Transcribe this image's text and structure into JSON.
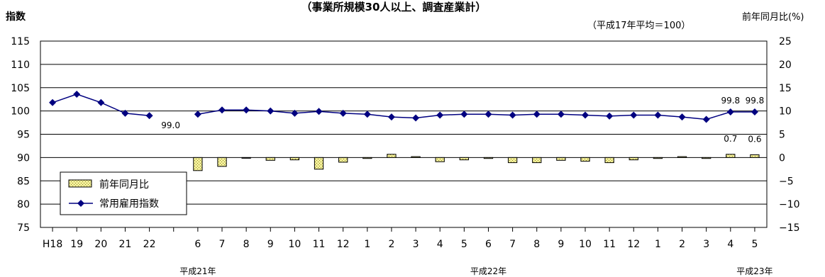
{
  "chart_data": {
    "type": "bar+line",
    "title": "（事業所規模30人以上、調査産業計）",
    "note": "（平成17年平均＝100）",
    "ylabel_left": "指数",
    "ylabel_right": "前年同月比(%)",
    "y_left": {
      "min": 75,
      "max": 115,
      "step": 5
    },
    "y_right": {
      "min": -15,
      "max": 25,
      "step": 5
    },
    "categories": [
      "H18",
      "19",
      "20",
      "21",
      "22",
      "",
      "6",
      "7",
      "8",
      "9",
      "10",
      "11",
      "12",
      "1",
      "2",
      "3",
      "4",
      "5",
      "6",
      "7",
      "8",
      "9",
      "10",
      "11",
      "12",
      "1",
      "2",
      "3",
      "4",
      "5"
    ],
    "year_groups": [
      {
        "label": "平成21年",
        "anchor": 6
      },
      {
        "label": "平成22年",
        "anchor": 18
      },
      {
        "label": "平成23年",
        "anchor": 29
      }
    ],
    "series": [
      {
        "name": "前年同月比",
        "kind": "bar",
        "axis": "right",
        "color": "#f3ef9a",
        "values": [
          null,
          null,
          null,
          null,
          null,
          null,
          -2.8,
          -1.9,
          -0.1,
          -0.6,
          -0.5,
          -2.5,
          -1.0,
          -0.2,
          0.7,
          0.2,
          -0.9,
          -0.5,
          -0.2,
          -1.1,
          -1.1,
          -0.6,
          -0.8,
          -1.1,
          -0.5,
          -0.2,
          0.2,
          -0.2,
          0.7,
          0.6
        ]
      },
      {
        "name": "常用雇用指数",
        "kind": "line",
        "axis": "left",
        "color": "#000080",
        "values": [
          101.8,
          103.6,
          101.8,
          99.5,
          99.0,
          null,
          99.3,
          100.2,
          100.2,
          100.0,
          99.5,
          99.9,
          99.5,
          99.3,
          98.7,
          98.5,
          99.1,
          99.3,
          99.3,
          99.1,
          99.3,
          99.3,
          99.1,
          98.9,
          99.1,
          99.1,
          98.7,
          98.2,
          99.8,
          99.8
        ]
      }
    ],
    "data_labels": [
      {
        "series": 1,
        "index": 4,
        "text": "99.0"
      },
      {
        "series": 1,
        "index": 28,
        "text": "99.8"
      },
      {
        "series": 1,
        "index": 29,
        "text": "99.8"
      },
      {
        "series": 0,
        "index": 28,
        "text": "0.7"
      },
      {
        "series": 0,
        "index": 29,
        "text": "0.6"
      }
    ],
    "legend": {
      "position": "bottom-left",
      "entries": [
        "前年同月比",
        "常用雇用指数"
      ]
    }
  }
}
